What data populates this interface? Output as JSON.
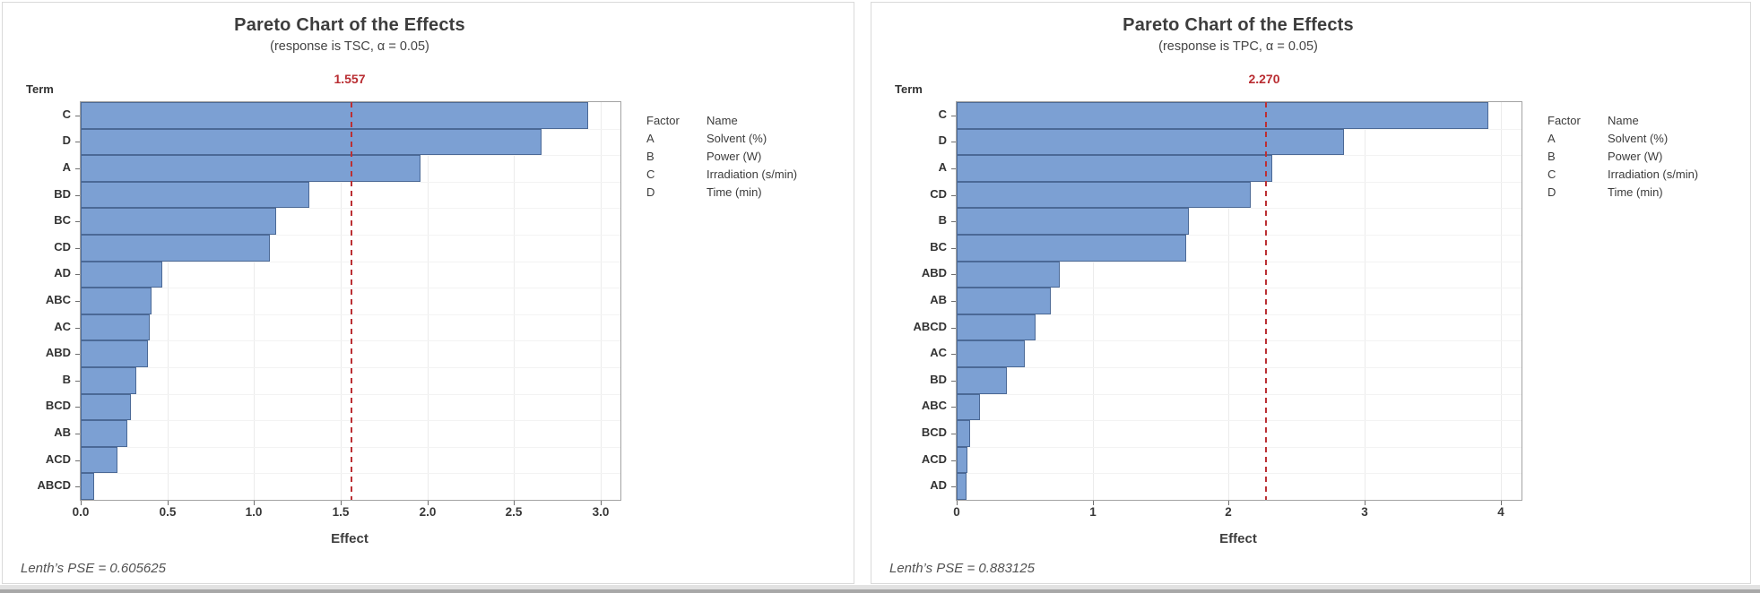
{
  "colors": {
    "bar_fill": "#7ca0d3",
    "bar_border": "#4b6996",
    "reference_red": "#bb3034",
    "title_text": "#3d3d3d",
    "axis_text": "#383838",
    "footnote_text": "#525252"
  },
  "chart_data": [
    {
      "type": "bar",
      "orientation": "horizontal",
      "title": "Pareto Chart of the Effects",
      "subtitle": "(response is TSC, α = 0.05)",
      "term_axis_label": "Term",
      "xlabel": "Effect",
      "reference_label": "1.557",
      "reference_value": 1.557,
      "footnote": "Lenth’s PSE = 0.605625",
      "categories": [
        "C",
        "D",
        "A",
        "BD",
        "BC",
        "CD",
        "AD",
        "ABC",
        "AC",
        "ABD",
        "B",
        "BCD",
        "AB",
        "ACD",
        "ABCD"
      ],
      "values": [
        2.93,
        2.66,
        1.96,
        1.32,
        1.13,
        1.09,
        0.47,
        0.41,
        0.4,
        0.39,
        0.32,
        0.29,
        0.27,
        0.21,
        0.08
      ],
      "xtick_labels": [
        "0.0",
        "0.5",
        "1.0",
        "1.5",
        "2.0",
        "2.5",
        "3.0"
      ],
      "xtick_values": [
        0,
        0.5,
        1.0,
        1.5,
        2.0,
        2.5,
        3.0
      ],
      "xlim": [
        0,
        3.114
      ],
      "grid": true,
      "legend_position": "right",
      "legend": {
        "header_factor": "Factor",
        "header_name": "Name",
        "rows": [
          {
            "factor": "A",
            "name": "Solvent (%)"
          },
          {
            "factor": "B",
            "name": "Power (W)"
          },
          {
            "factor": "C",
            "name": "Irradiation (s/min)"
          },
          {
            "factor": "D",
            "name": "Time (min)"
          }
        ]
      }
    },
    {
      "type": "bar",
      "orientation": "horizontal",
      "title": "Pareto Chart of the Effects",
      "subtitle": "(response is TPC, α = 0.05)",
      "term_axis_label": "Term",
      "xlabel": "Effect",
      "reference_label": "2.270",
      "reference_value": 2.27,
      "footnote": "Lenth’s PSE = 0.883125",
      "categories": [
        "C",
        "D",
        "A",
        "CD",
        "B",
        "BC",
        "ABD",
        "AB",
        "ABCD",
        "AC",
        "BD",
        "ABC",
        "BCD",
        "ACD",
        "AD"
      ],
      "values": [
        3.91,
        2.85,
        2.32,
        2.16,
        1.71,
        1.69,
        0.76,
        0.69,
        0.58,
        0.5,
        0.37,
        0.17,
        0.1,
        0.08,
        0.07
      ],
      "xtick_labels": [
        "0",
        "1",
        "2",
        "3",
        "4"
      ],
      "xtick_values": [
        0,
        1,
        2,
        3,
        4
      ],
      "xlim": [
        0,
        4.153
      ],
      "grid": true,
      "legend_position": "right",
      "legend": {
        "header_factor": "Factor",
        "header_name": "Name",
        "rows": [
          {
            "factor": "A",
            "name": "Solvent (%)"
          },
          {
            "factor": "B",
            "name": "Power (W)"
          },
          {
            "factor": "C",
            "name": "Irradiation (s/min)"
          },
          {
            "factor": "D",
            "name": "Time (min)"
          }
        ]
      }
    }
  ]
}
